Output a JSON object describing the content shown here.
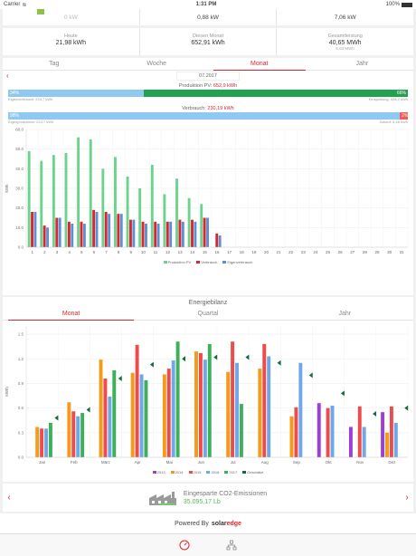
{
  "status": {
    "carrier": "Carrier",
    "time": "1:31 PM",
    "battery": "100%"
  },
  "top_values": [
    {
      "value": "0 kW",
      "muted": true
    },
    {
      "value": "0,88 kW",
      "muted": false
    },
    {
      "value": "7,06 kW",
      "muted": false
    }
  ],
  "summary": [
    {
      "label": "Heute",
      "value": "21,98 kWh",
      "sub": ""
    },
    {
      "label": "Diesen Monat",
      "value": "652,91 kWh",
      "sub": ""
    },
    {
      "label": "Gesamtleistung",
      "value": "40,65 MWh",
      "sub": "6,63 MWh"
    }
  ],
  "tabs1": [
    "Tag",
    "Woche",
    "Monat",
    "Jahr"
  ],
  "tabs1_active": 2,
  "month": "07.2017",
  "production": {
    "title": "Produktion PV:",
    "value": "652,9 kWh",
    "left_pct": "34%",
    "right_pct": "66%",
    "left_label": "Eigenverbrauch: 224,7 kWh",
    "right_label": "Einspeisung: 428,2 kWh",
    "left_fraction": 0.34
  },
  "consumption": {
    "title": "Verbrauch:",
    "value": "230,19 kWh",
    "left_pct": "98%",
    "right_pct": "2%",
    "left_label": "Eigenproduktion: 224,7 kWh",
    "right_label": "Zukauf: 5,48 kWh",
    "left_fraction": 0.98
  },
  "chart1": {
    "type": "bar",
    "ylabel": "kWh",
    "ylim": [
      0,
      60
    ],
    "yticks": [
      "0.0",
      "10.0",
      "20.0",
      "30.0",
      "40.0",
      "50.0",
      "60.0"
    ],
    "categories": [
      "1",
      "2",
      "3",
      "4",
      "5",
      "6",
      "7",
      "8",
      "9",
      "10",
      "11",
      "12",
      "13",
      "14",
      "15",
      "16",
      "17",
      "18",
      "19",
      "20",
      "21",
      "22",
      "23",
      "24",
      "25",
      "26",
      "27",
      "28",
      "29",
      "30",
      "31"
    ],
    "series": [
      {
        "name": "Produktion PV",
        "color": "#6cd38e",
        "values": [
          49,
          44,
          47,
          48,
          56,
          55,
          40,
          46,
          36,
          30,
          42,
          27,
          35,
          25,
          22,
          0,
          0,
          0,
          0,
          0,
          0,
          0,
          0,
          0,
          0,
          0,
          0,
          0,
          0,
          0,
          0
        ]
      },
      {
        "name": "Verbrauch",
        "color": "#d9272e",
        "values": [
          18,
          11,
          15,
          13,
          13,
          19,
          18,
          17,
          14,
          13,
          13,
          13,
          14,
          14,
          15,
          7,
          0,
          0,
          0,
          0,
          0,
          0,
          0,
          0,
          0,
          0,
          0,
          0,
          0,
          0,
          0
        ]
      },
      {
        "name": "Eigenverbrauch",
        "color": "#5b8fd6",
        "values": [
          18,
          10,
          15,
          12,
          12,
          18,
          17,
          17,
          14,
          12,
          12,
          13,
          13,
          13,
          15,
          6,
          0,
          0,
          0,
          0,
          0,
          0,
          0,
          0,
          0,
          0,
          0,
          0,
          0,
          0,
          0
        ]
      }
    ]
  },
  "energy_title": "Energiebilanz",
  "tabs2": [
    "Monat",
    "Quartal",
    "Jahr"
  ],
  "tabs2_active": 0,
  "chart2": {
    "type": "bar",
    "ylabel": "MWh",
    "ylim": [
      0,
      1.6
    ],
    "yticks": [
      "0.0",
      "0.3",
      "0.6",
      "0.9",
      "1.2",
      "1.5"
    ],
    "categories": [
      "Jan",
      "Feb",
      "März",
      "Apr",
      "Mai",
      "Jun",
      "Jul",
      "Aug",
      "Sep",
      "Okt",
      "Nov",
      "Dez"
    ],
    "series": [
      {
        "name": "2013",
        "color": "#9c3fd8",
        "values": [
          null,
          null,
          null,
          null,
          null,
          null,
          null,
          null,
          null,
          0.66,
          0.37,
          0.55
        ]
      },
      {
        "name": "2014",
        "color": "#f59a1a",
        "values": [
          0.37,
          0.67,
          1.19,
          1.03,
          1.01,
          1.29,
          1.04,
          1.08,
          0.5,
          null,
          null,
          0.3
        ]
      },
      {
        "name": "2015",
        "color": "#ef4b4b",
        "values": [
          0.35,
          0.56,
          0.96,
          1.37,
          1.08,
          1.27,
          1.41,
          1.38,
          0.61,
          0.6,
          0.62,
          0.62
        ]
      },
      {
        "name": "2016",
        "color": "#6fa8e8",
        "values": [
          0.35,
          0.5,
          0.74,
          1.01,
          1.18,
          1.19,
          1.15,
          1.23,
          1.15,
          0.63,
          0.37,
          0.42
        ]
      },
      {
        "name": "2017",
        "color": "#3fb05a",
        "values": [
          0.42,
          0.54,
          1.06,
          0.94,
          1.41,
          1.38,
          0.65,
          null,
          null,
          null,
          null,
          null
        ]
      }
    ],
    "estimate_name": "Geschätzt",
    "estimate_color": "#136b3b",
    "estimate": [
      0.48,
      0.58,
      0.96,
      1.13,
      1.2,
      1.22,
      1.22,
      1.15,
      1.0,
      0.78,
      0.53,
      0.6
    ]
  },
  "co2": {
    "title": "Eingesparte CO2-Emissionen",
    "value": "35.095,17 Lb"
  },
  "powered": {
    "text": "Powered By",
    "brand_a": "solar",
    "brand_b": "edge"
  }
}
